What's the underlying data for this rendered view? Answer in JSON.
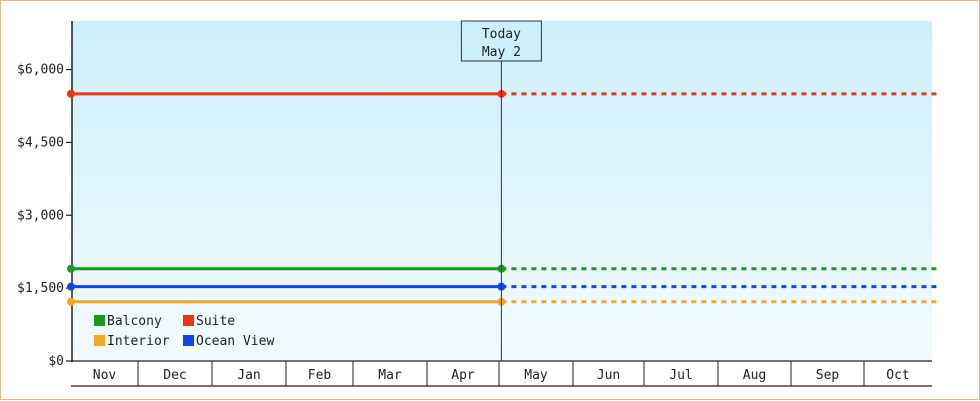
{
  "chart_data": {
    "type": "line",
    "title": "",
    "xlabel": "",
    "ylabel": "",
    "ylim": [
      0,
      7000
    ],
    "yticks": [
      {
        "value": 0,
        "label": "$0"
      },
      {
        "value": 1500,
        "label": "$1,500"
      },
      {
        "value": 3000,
        "label": "$3,000"
      },
      {
        "value": 4500,
        "label": "$4,500"
      },
      {
        "value": 6000,
        "label": "$6,000"
      }
    ],
    "categories": [
      "Nov",
      "Dec",
      "Jan",
      "Feb",
      "Mar",
      "Apr",
      "May",
      "Jun",
      "Jul",
      "Aug",
      "Sep",
      "Oct"
    ],
    "today": {
      "label_line1": "Today",
      "label_line2": "May 2",
      "date": "May 2"
    },
    "x_range": [
      "Nov 1",
      "Oct 31"
    ],
    "series": [
      {
        "name": "Balcony",
        "color": "#1a9a1a",
        "history": [
          [
            "Nov 1",
            1900
          ],
          [
            "May 2",
            1900
          ]
        ],
        "projection": [
          [
            "May 2",
            1900
          ],
          [
            "Oct 31",
            1900
          ]
        ]
      },
      {
        "name": "Suite",
        "color": "#ee3311",
        "history": [
          [
            "Nov 1",
            5500
          ],
          [
            "May 2",
            5500
          ]
        ],
        "projection": [
          [
            "May 2",
            5500
          ],
          [
            "Oct 31",
            5500
          ]
        ]
      },
      {
        "name": "Interior",
        "color": "#f5a623",
        "history": [
          [
            "Nov 1",
            1220
          ],
          [
            "May 2",
            1220
          ]
        ],
        "projection": [
          [
            "May 2",
            1220
          ],
          [
            "Oct 31",
            1220
          ]
        ]
      },
      {
        "name": "Ocean View",
        "color": "#1144ee",
        "history": [
          [
            "Nov 1",
            1530
          ],
          [
            "May 2",
            1530
          ]
        ],
        "projection": [
          [
            "May 2",
            1530
          ],
          [
            "Oct 31",
            1530
          ]
        ]
      }
    ],
    "legend_position": "bottom-left",
    "background_gradient": [
      "#cdeffa",
      "#f2fbfe"
    ]
  }
}
